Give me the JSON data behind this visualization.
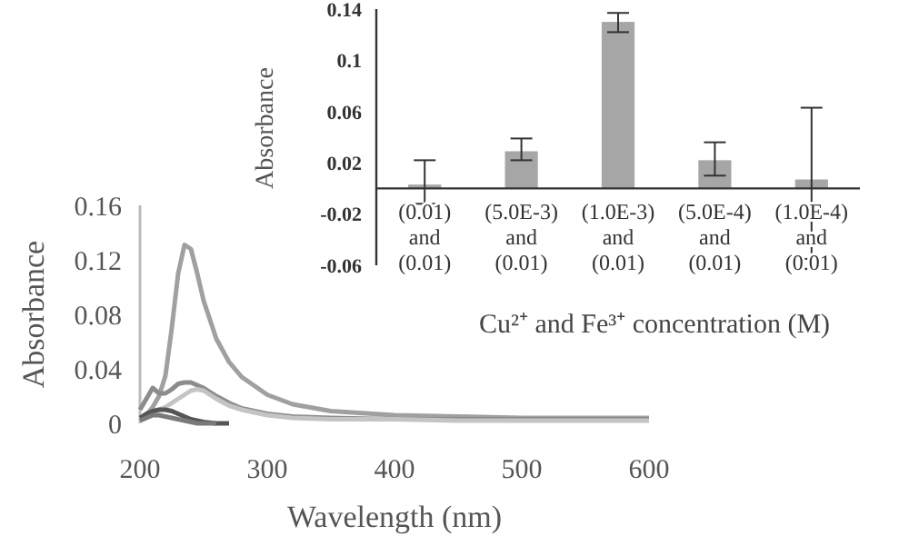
{
  "chart_data": [
    {
      "type": "line",
      "xlabel": "Wavelength (nm)",
      "ylabel": "Absorbance",
      "x": [
        200,
        205,
        210,
        215,
        220,
        225,
        230,
        235,
        240,
        245,
        250,
        260,
        270,
        280,
        300,
        320,
        350,
        400,
        450,
        500,
        550,
        600
      ],
      "xlim": [
        200,
        600
      ],
      "xticks": [
        200,
        300,
        400,
        500,
        600
      ],
      "ylim": [
        0,
        0.16
      ],
      "yticks": [
        0,
        0.04,
        0.08,
        0.12,
        0.16
      ],
      "grid": false,
      "marker": "none",
      "line_style": "solid",
      "series": [
        {
          "color": "#a0a0a0",
          "values": [
            0.004,
            0.006,
            0.012,
            0.02,
            0.035,
            0.07,
            0.11,
            0.131,
            0.128,
            0.11,
            0.09,
            0.062,
            0.045,
            0.034,
            0.021,
            0.014,
            0.009,
            0.006,
            0.005,
            0.004,
            0.004,
            0.004
          ]
        },
        {
          "color": "#8c8c8c",
          "values": [
            0.01,
            0.018,
            0.026,
            0.022,
            0.022,
            0.025,
            0.029,
            0.03,
            0.03,
            0.028,
            0.026,
            0.02,
            0.015,
            0.011,
            0.007,
            0.005,
            0.004,
            0.003,
            0.003,
            0.003,
            0.003,
            0.003
          ]
        },
        {
          "color": "#c4c4c4",
          "values": [
            0.003,
            0.005,
            0.008,
            0.01,
            0.012,
            0.015,
            0.018,
            0.021,
            0.024,
            0.025,
            0.024,
            0.018,
            0.013,
            0.01,
            0.006,
            0.004,
            0.003,
            0.003,
            0.002,
            0.002,
            0.002,
            0.002
          ]
        },
        {
          "color": "#555555",
          "values": [
            0.004,
            0.007,
            0.009,
            0.01,
            0.01,
            0.009,
            0.007,
            0.005,
            0.003,
            0.002,
            0.001,
            0,
            0,
            null,
            null,
            null,
            null,
            null,
            null,
            null,
            null,
            null
          ]
        },
        {
          "color": "#7a7a7a",
          "values": [
            0.002,
            0.004,
            0.006,
            0.006,
            0.005,
            0.004,
            0.003,
            0.002,
            0.001,
            0,
            0,
            0,
            null,
            null,
            null,
            null,
            null,
            null,
            null,
            null,
            null,
            null
          ]
        }
      ]
    },
    {
      "type": "bar",
      "xlabel": "Cu²⁺ and Fe³⁺ concentration (M)",
      "ylabel": "Absorbance",
      "categories": [
        "(0.01) and (0.01)",
        "(5.0E-3) and (0.01)",
        "(1.0E-3) and (0.01)",
        "(5.0E-4) and (0.01)",
        "(1.0E-4) and (0.01)"
      ],
      "values": [
        0.003,
        0.029,
        0.13,
        0.022,
        0.007
      ],
      "color": "#a6a6a6",
      "errors": [
        [
          -0.012,
          0.022
        ],
        [
          0.022,
          0.039
        ],
        [
          0.122,
          0.137
        ],
        [
          0.01,
          0.036
        ],
        [
          -0.055,
          0.063
        ]
      ],
      "ylim": [
        -0.06,
        0.14
      ],
      "yticks": [
        -0.06,
        -0.02,
        0.02,
        0.06,
        0.1,
        0.14
      ]
    }
  ]
}
